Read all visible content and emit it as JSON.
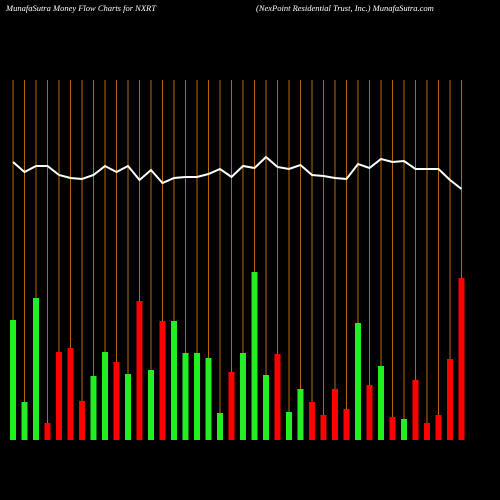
{
  "chart_data": {
    "type": "bar",
    "title": "MunafaSutra  Money Flow  Charts for NXRT",
    "subtitle": "(NexPoint Residential Trust,  Inc.) MunafaSutra.com",
    "ylim": [
      0,
      360
    ],
    "values": [
      120,
      38,
      142,
      17,
      88,
      92,
      39,
      64,
      88,
      78,
      66,
      139,
      70,
      119,
      119,
      87,
      87,
      82,
      27,
      68,
      87,
      168,
      65,
      86,
      28,
      51,
      38,
      25,
      51,
      31,
      117,
      55,
      74,
      23,
      21,
      60,
      17,
      25,
      81,
      162
    ],
    "bar_colors": [
      "#22ee22",
      "#22ee22",
      "#22ee22",
      "#ff0000",
      "#ff0000",
      "#ff0000",
      "#ff0000",
      "#22ee22",
      "#22ee22",
      "#ff0000",
      "#22ee22",
      "#ff0000",
      "#22ee22",
      "#ff0000",
      "#22ee22",
      "#22ee22",
      "#22ee22",
      "#22ee22",
      "#22ee22",
      "#ff0000",
      "#22ee22",
      "#22ee22",
      "#22ee22",
      "#ff0000",
      "#22ee22",
      "#22ee22",
      "#ff0000",
      "#ff0000",
      "#ff0000",
      "#ff0000",
      "#22ee22",
      "#ff0000",
      "#22ee22",
      "#ff0000",
      "#22ee22",
      "#ff0000",
      "#ff0000",
      "#ff0000",
      "#ff0000",
      "#ff0000"
    ],
    "line": {
      "color": "#ffffff",
      "values": [
        278,
        268,
        274,
        274,
        265,
        262,
        261,
        265,
        274,
        268,
        274,
        260,
        270,
        257,
        262,
        263,
        263,
        266,
        271,
        263,
        274,
        272,
        283,
        273,
        271,
        275,
        265,
        264,
        262,
        261,
        276,
        272,
        281,
        278,
        279,
        271,
        271,
        271,
        260,
        251
      ]
    },
    "grid_color": "#b8690f"
  }
}
